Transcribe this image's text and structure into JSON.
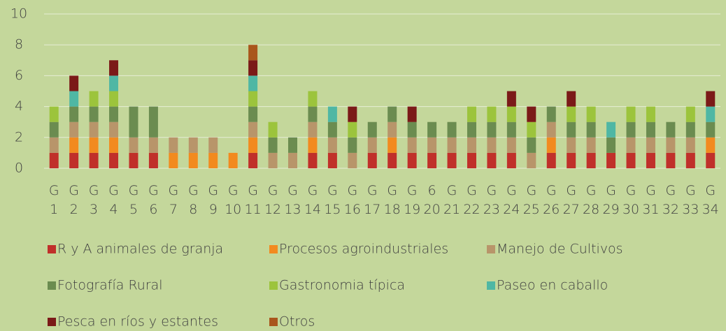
{
  "chart_data": {
    "type": "bar",
    "stacked": true,
    "categories": [
      "G 1",
      "G 2",
      "G 3",
      "G 4",
      "G 5",
      "G 6",
      "G 7",
      "G 8",
      "G 9",
      "G 10",
      "G 11",
      "G 12",
      "G 13",
      "G 14",
      "G 15",
      "G 16",
      "G 17",
      "G 18",
      "G 19",
      "6 20",
      "G 21",
      "G 22",
      "G 23",
      "G 24",
      "G 25",
      "G 26",
      "G 27",
      "G 28",
      "G 29",
      "G 30",
      "G 31",
      "G 32",
      "G 33",
      "G 34"
    ],
    "series": [
      {
        "name": "R y A animales de granja",
        "color": "#c0302a",
        "values": [
          1,
          1,
          1,
          1,
          1,
          1,
          0,
          0,
          0,
          0,
          1,
          0,
          0,
          1,
          1,
          0,
          1,
          1,
          1,
          1,
          1,
          1,
          1,
          1,
          0,
          1,
          1,
          1,
          1,
          1,
          1,
          1,
          1,
          1
        ]
      },
      {
        "name": "Procesos agroindustriales",
        "color": "#f28a1f",
        "values": [
          0,
          1,
          1,
          1,
          0,
          0,
          1,
          1,
          1,
          1,
          1,
          0,
          0,
          1,
          0,
          0,
          0,
          1,
          0,
          0,
          0,
          0,
          0,
          0,
          0,
          1,
          0,
          0,
          0,
          0,
          0,
          0,
          0,
          1
        ]
      },
      {
        "name": "Manejo de Cultivos",
        "color": "#b8956a",
        "values": [
          1,
          1,
          1,
          1,
          1,
          1,
          1,
          1,
          1,
          0,
          1,
          1,
          1,
          1,
          1,
          1,
          1,
          1,
          1,
          1,
          1,
          1,
          1,
          1,
          1,
          1,
          1,
          1,
          0,
          1,
          1,
          1,
          1,
          0
        ]
      },
      {
        "name": "Fotografía Rural",
        "color": "#6b8c50",
        "values": [
          1,
          1,
          1,
          1,
          2,
          2,
          0,
          0,
          0,
          0,
          1,
          1,
          1,
          1,
          1,
          1,
          1,
          1,
          1,
          1,
          1,
          1,
          1,
          1,
          1,
          1,
          1,
          1,
          1,
          1,
          1,
          1,
          1,
          1
        ]
      },
      {
        "name": "Gastronomia típica",
        "color": "#9cc43c",
        "values": [
          1,
          0,
          1,
          1,
          0,
          0,
          0,
          0,
          0,
          0,
          1,
          1,
          0,
          1,
          0,
          1,
          0,
          0,
          0,
          0,
          0,
          1,
          1,
          1,
          1,
          0,
          1,
          1,
          0,
          1,
          1,
          0,
          1,
          0
        ]
      },
      {
        "name": "Paseo en caballo",
        "color": "#4fb7a4",
        "values": [
          0,
          1,
          0,
          1,
          0,
          0,
          0,
          0,
          0,
          0,
          1,
          0,
          0,
          0,
          1,
          0,
          0,
          0,
          0,
          0,
          0,
          0,
          0,
          0,
          0,
          0,
          0,
          0,
          1,
          0,
          0,
          0,
          0,
          1
        ]
      },
      {
        "name": "Pesca en ríos y estantes",
        "color": "#7b1a18",
        "values": [
          0,
          1,
          0,
          1,
          0,
          0,
          0,
          0,
          0,
          0,
          1,
          0,
          0,
          0,
          0,
          1,
          0,
          0,
          1,
          0,
          0,
          0,
          0,
          1,
          1,
          0,
          1,
          0,
          0,
          0,
          0,
          0,
          0,
          1
        ]
      },
      {
        "name": "Otros",
        "color": "#a9561c",
        "values": [
          0,
          0,
          0,
          0,
          0,
          0,
          0,
          0,
          0,
          0,
          1,
          0,
          0,
          0,
          0,
          0,
          0,
          0,
          0,
          0,
          0,
          0,
          0,
          0,
          0,
          0,
          0,
          0,
          0,
          0,
          0,
          0,
          0,
          0
        ]
      }
    ],
    "ylim": [
      0,
      10
    ],
    "yticks": [
      0,
      2,
      4,
      6,
      8,
      10
    ],
    "grid": true,
    "legend": "bottom"
  }
}
